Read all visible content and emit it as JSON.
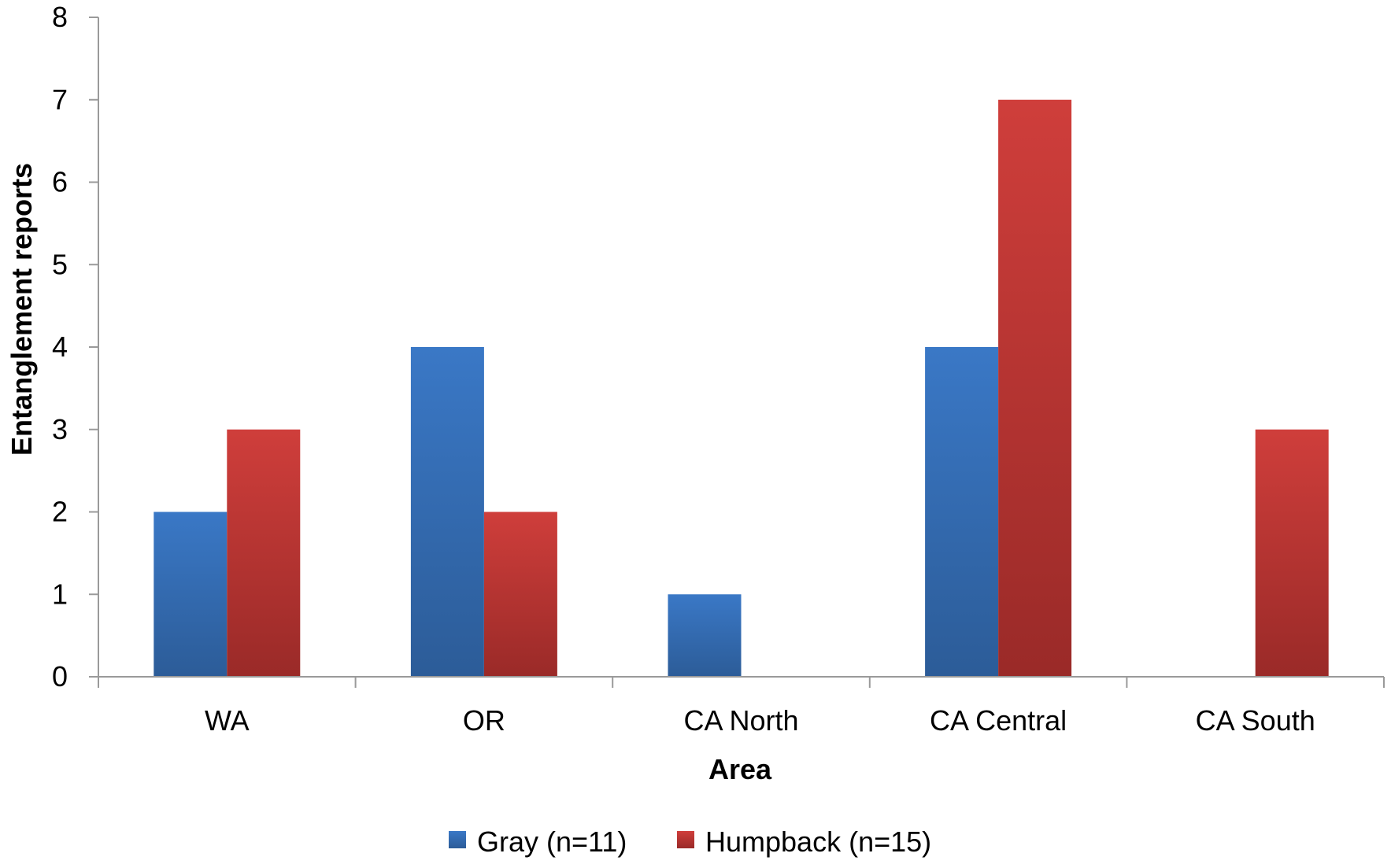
{
  "chart_data": {
    "type": "bar",
    "title": "",
    "xlabel": "Area",
    "ylabel": "Entanglement reports",
    "ylim": [
      0,
      8
    ],
    "yticks": [
      0,
      1,
      2,
      3,
      4,
      5,
      6,
      7,
      8
    ],
    "grid": false,
    "legend_position": "bottom",
    "categories": [
      "WA",
      "OR",
      "CA North",
      "CA Central",
      "CA South"
    ],
    "series": [
      {
        "name": "Gray (n=11)",
        "color": "#3a78c6",
        "color_dark": "#2c5c98",
        "values": [
          2,
          4,
          1,
          4,
          0
        ]
      },
      {
        "name": "Humpback (n=15)",
        "color": "#cf3e3b",
        "color_dark": "#9a2a28",
        "values": [
          3,
          2,
          0,
          7,
          3
        ]
      }
    ]
  }
}
